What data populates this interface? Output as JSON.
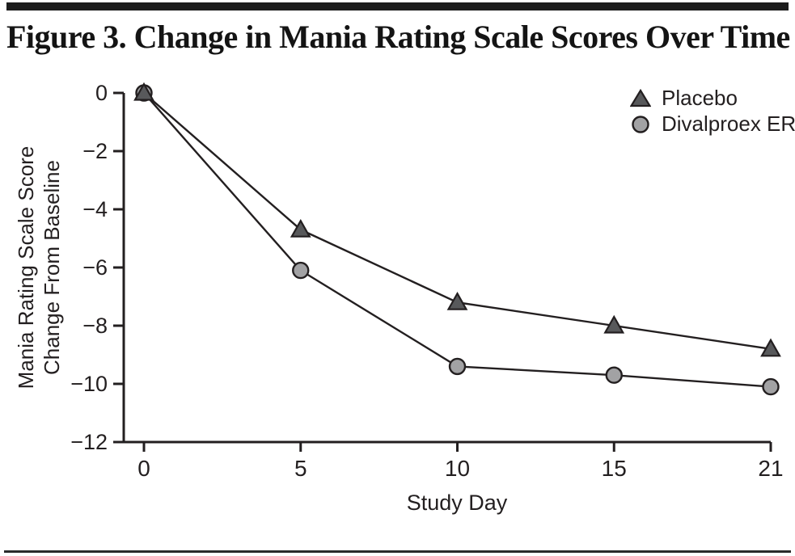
{
  "title": "Figure 3. Change in Mania Rating Scale Scores Over Time",
  "chart_data": {
    "type": "line",
    "title": "Figure 3. Change in Mania Rating Scale Scores Over Time",
    "xlabel": "Study Day",
    "ylabel_line1": "Mania Rating Scale Score",
    "ylabel_line2": "Change From Baseline",
    "x": [
      0,
      5,
      10,
      15,
      21
    ],
    "x_tick_labels": [
      "0",
      "5",
      "10",
      "15",
      "21"
    ],
    "x_spacing": "even",
    "ylim": [
      -12,
      0
    ],
    "yticks": [
      0,
      -2,
      -4,
      -6,
      -8,
      -10,
      -12
    ],
    "ytick_labels": [
      "0",
      "−2",
      "−4",
      "−6",
      "−8",
      "−10",
      "−12"
    ],
    "grid": false,
    "legend_position": "top-right-inside",
    "line_color": "#231f20",
    "series": [
      {
        "name": "Placebo",
        "marker": "triangle",
        "marker_fill": "#58595b",
        "values": [
          0,
          -4.7,
          -7.2,
          -8.0,
          -8.8
        ]
      },
      {
        "name": "Divalproex ER",
        "marker": "circle",
        "marker_fill": "#a2a2a4",
        "values": [
          0,
          -6.1,
          -9.4,
          -9.7,
          -10.1
        ]
      }
    ]
  }
}
